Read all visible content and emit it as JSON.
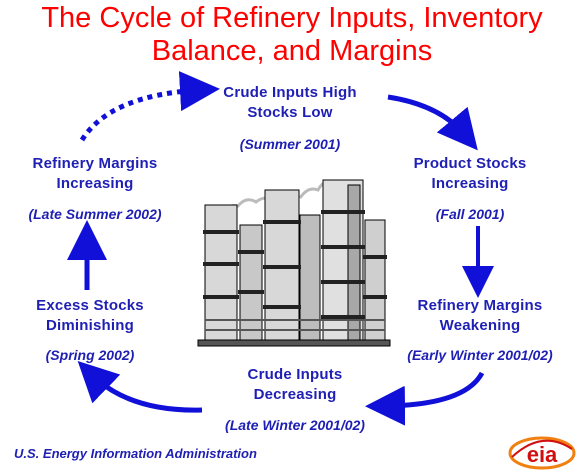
{
  "title": {
    "line1": "The Cycle of Refinery Inputs, Inventory",
    "line2": "Balance,  and Margins"
  },
  "nodes": {
    "top": {
      "label_line1": "Crude Inputs High",
      "label_line2": "Stocks Low",
      "date": "(Summer 2001)"
    },
    "right_upper": {
      "label_line1": "Product Stocks",
      "label_line2": "Increasing",
      "date": "(Fall 2001)"
    },
    "right_lower": {
      "label_line1": "Refinery Margins",
      "label_line2": "Weakening",
      "date": "(Early Winter 2001/02)"
    },
    "bottom": {
      "label_line1": "Crude Inputs",
      "label_line2": "Decreasing",
      "date": "(Late Winter 2001/02)"
    },
    "left_lower": {
      "label_line1": "Excess Stocks",
      "label_line2": "Diminishing",
      "date": "(Spring 2002)"
    },
    "left_upper": {
      "label_line1": "Refinery Margins",
      "label_line2": "Increasing",
      "date": "(Late Summer 2002)"
    }
  },
  "footer": {
    "source": "U.S. Energy Information Administration"
  },
  "logo": {
    "text": "eia"
  },
  "colors": {
    "title": "#ff0000",
    "text": "#1f1fb4",
    "arrow": "#1010d8",
    "logo_orange": "#f08010",
    "logo_red": "#d01010"
  },
  "icons": {
    "center_image": "refinery-illustration",
    "logo": "eia-logo"
  }
}
